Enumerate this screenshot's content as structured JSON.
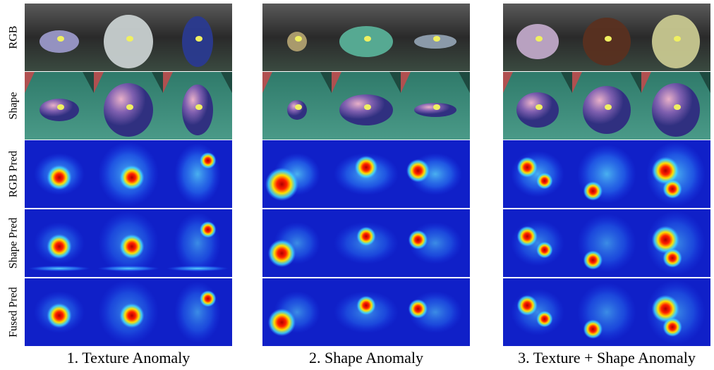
{
  "row_labels": [
    "RGB",
    "Shape",
    "RGB Pred",
    "Shape Pred",
    "Fused Pred"
  ],
  "groups": [
    {
      "caption": "1. Texture Anomaly"
    },
    {
      "caption": "2. Shape Anomaly"
    },
    {
      "caption": "3. Texture + Shape Anomaly"
    }
  ]
}
